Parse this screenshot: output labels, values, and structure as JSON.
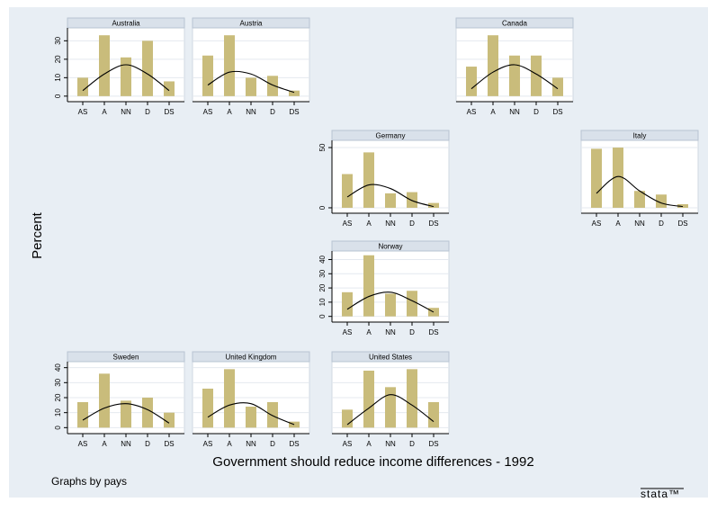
{
  "y_title": "Percent",
  "x_title": "Government should reduce income differences - 1992",
  "note": "Graphs by pays",
  "logo": "stata™",
  "chart_data": [
    {
      "type": "bar",
      "title": "Australia",
      "categories": [
        "AS",
        "A",
        "NN",
        "D",
        "DS"
      ],
      "values": [
        10,
        33,
        21,
        30,
        8
      ],
      "density": [
        3,
        12,
        17,
        12,
        3
      ],
      "color": "#c9bc7b",
      "ylim": [
        -3,
        37
      ],
      "yticks": [
        0,
        10,
        20,
        30
      ],
      "yaxis_labels": true,
      "grid": true
    },
    {
      "type": "bar",
      "title": "Austria",
      "categories": [
        "AS",
        "A",
        "NN",
        "D",
        "DS"
      ],
      "values": [
        22,
        33,
        10,
        11,
        3
      ],
      "density": [
        6,
        13,
        12,
        6,
        2
      ],
      "color": "#c9bc7b",
      "ylim": [
        -3,
        37
      ],
      "yticks": [
        0,
        10,
        20,
        30
      ],
      "yaxis_labels": false,
      "grid": true
    },
    {
      "type": "bar",
      "title": "Canada",
      "categories": [
        "AS",
        "A",
        "NN",
        "D",
        "DS"
      ],
      "values": [
        16,
        33,
        22,
        22,
        10
      ],
      "density": [
        4,
        13,
        17,
        12,
        4
      ],
      "color": "#c9bc7b",
      "ylim": [
        -3,
        37
      ],
      "yticks": [
        0,
        10,
        20,
        30
      ],
      "yaxis_labels": false,
      "grid": true
    },
    {
      "type": "bar",
      "title": "Germany",
      "categories": [
        "AS",
        "A",
        "NN",
        "D",
        "DS"
      ],
      "values": [
        28,
        46,
        12,
        13,
        4
      ],
      "density": [
        9,
        19,
        16,
        6,
        1
      ],
      "color": "#c9bc7b",
      "ylim": [
        -4.5,
        56
      ],
      "yticks": [
        0,
        50
      ],
      "yaxis_labels": true,
      "grid": true
    },
    {
      "type": "bar",
      "title": "Italy",
      "categories": [
        "AS",
        "A",
        "NN",
        "D",
        "DS"
      ],
      "values": [
        49,
        50,
        14,
        11,
        3
      ],
      "density": [
        12,
        26,
        14,
        4,
        1
      ],
      "color": "#c9bc7b",
      "ylim": [
        -4.5,
        56
      ],
      "yticks": [
        0,
        50
      ],
      "yaxis_labels": false,
      "grid": true
    },
    {
      "type": "bar",
      "title": "Norway",
      "categories": [
        "AS",
        "A",
        "NN",
        "D",
        "DS"
      ],
      "values": [
        17,
        43,
        16,
        18,
        6
      ],
      "density": [
        5,
        14,
        17,
        11,
        3
      ],
      "color": "#c9bc7b",
      "ylim": [
        -4,
        46
      ],
      "yticks": [
        0,
        10,
        20,
        30,
        40
      ],
      "yaxis_labels": true,
      "grid": true
    },
    {
      "type": "bar",
      "title": "Sweden",
      "categories": [
        "AS",
        "A",
        "NN",
        "D",
        "DS"
      ],
      "values": [
        17,
        36,
        18,
        20,
        10
      ],
      "density": [
        5,
        13,
        16,
        12,
        3
      ],
      "color": "#c9bc7b",
      "ylim": [
        -4,
        44
      ],
      "yticks": [
        0,
        10,
        20,
        30,
        40
      ],
      "yaxis_labels": true,
      "grid": true
    },
    {
      "type": "bar",
      "title": "United Kingdom",
      "categories": [
        "AS",
        "A",
        "NN",
        "D",
        "DS"
      ],
      "values": [
        26,
        39,
        14,
        17,
        4
      ],
      "density": [
        7,
        15,
        16,
        8,
        2
      ],
      "color": "#c9bc7b",
      "ylim": [
        -4,
        44
      ],
      "yticks": [
        0,
        10,
        20,
        30,
        40
      ],
      "yaxis_labels": false,
      "grid": true
    },
    {
      "type": "bar",
      "title": "United States",
      "categories": [
        "AS",
        "A",
        "NN",
        "D",
        "DS"
      ],
      "values": [
        12,
        38,
        27,
        39,
        17
      ],
      "density": [
        2,
        13,
        22,
        15,
        4
      ],
      "color": "#c9bc7b",
      "ylim": [
        -4,
        44
      ],
      "yticks": [
        0,
        10,
        20,
        30,
        40
      ],
      "yaxis_labels": false,
      "grid": true
    }
  ]
}
